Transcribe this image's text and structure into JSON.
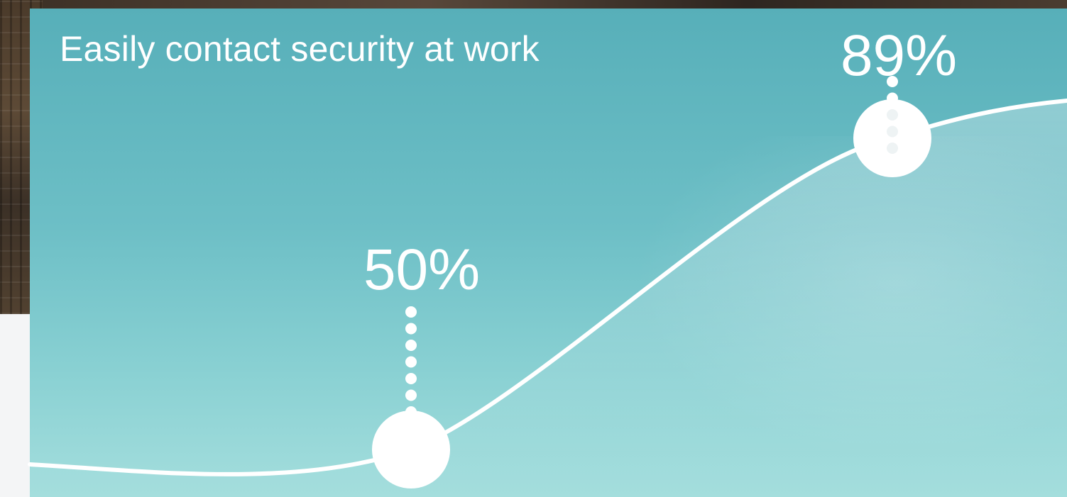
{
  "colors": {
    "card_top": "#57afb9",
    "card_bottom": "#a4dedd",
    "line": "#ffffff",
    "marker": "#ffffff"
  },
  "chart_data": {
    "type": "line",
    "title": "Easily contact security at work",
    "xlabel": "",
    "ylabel": "",
    "grid": false,
    "legend": "none",
    "highlights": [
      {
        "value": 50,
        "label": "50%"
      },
      {
        "value": 89,
        "label": "89%"
      }
    ]
  }
}
